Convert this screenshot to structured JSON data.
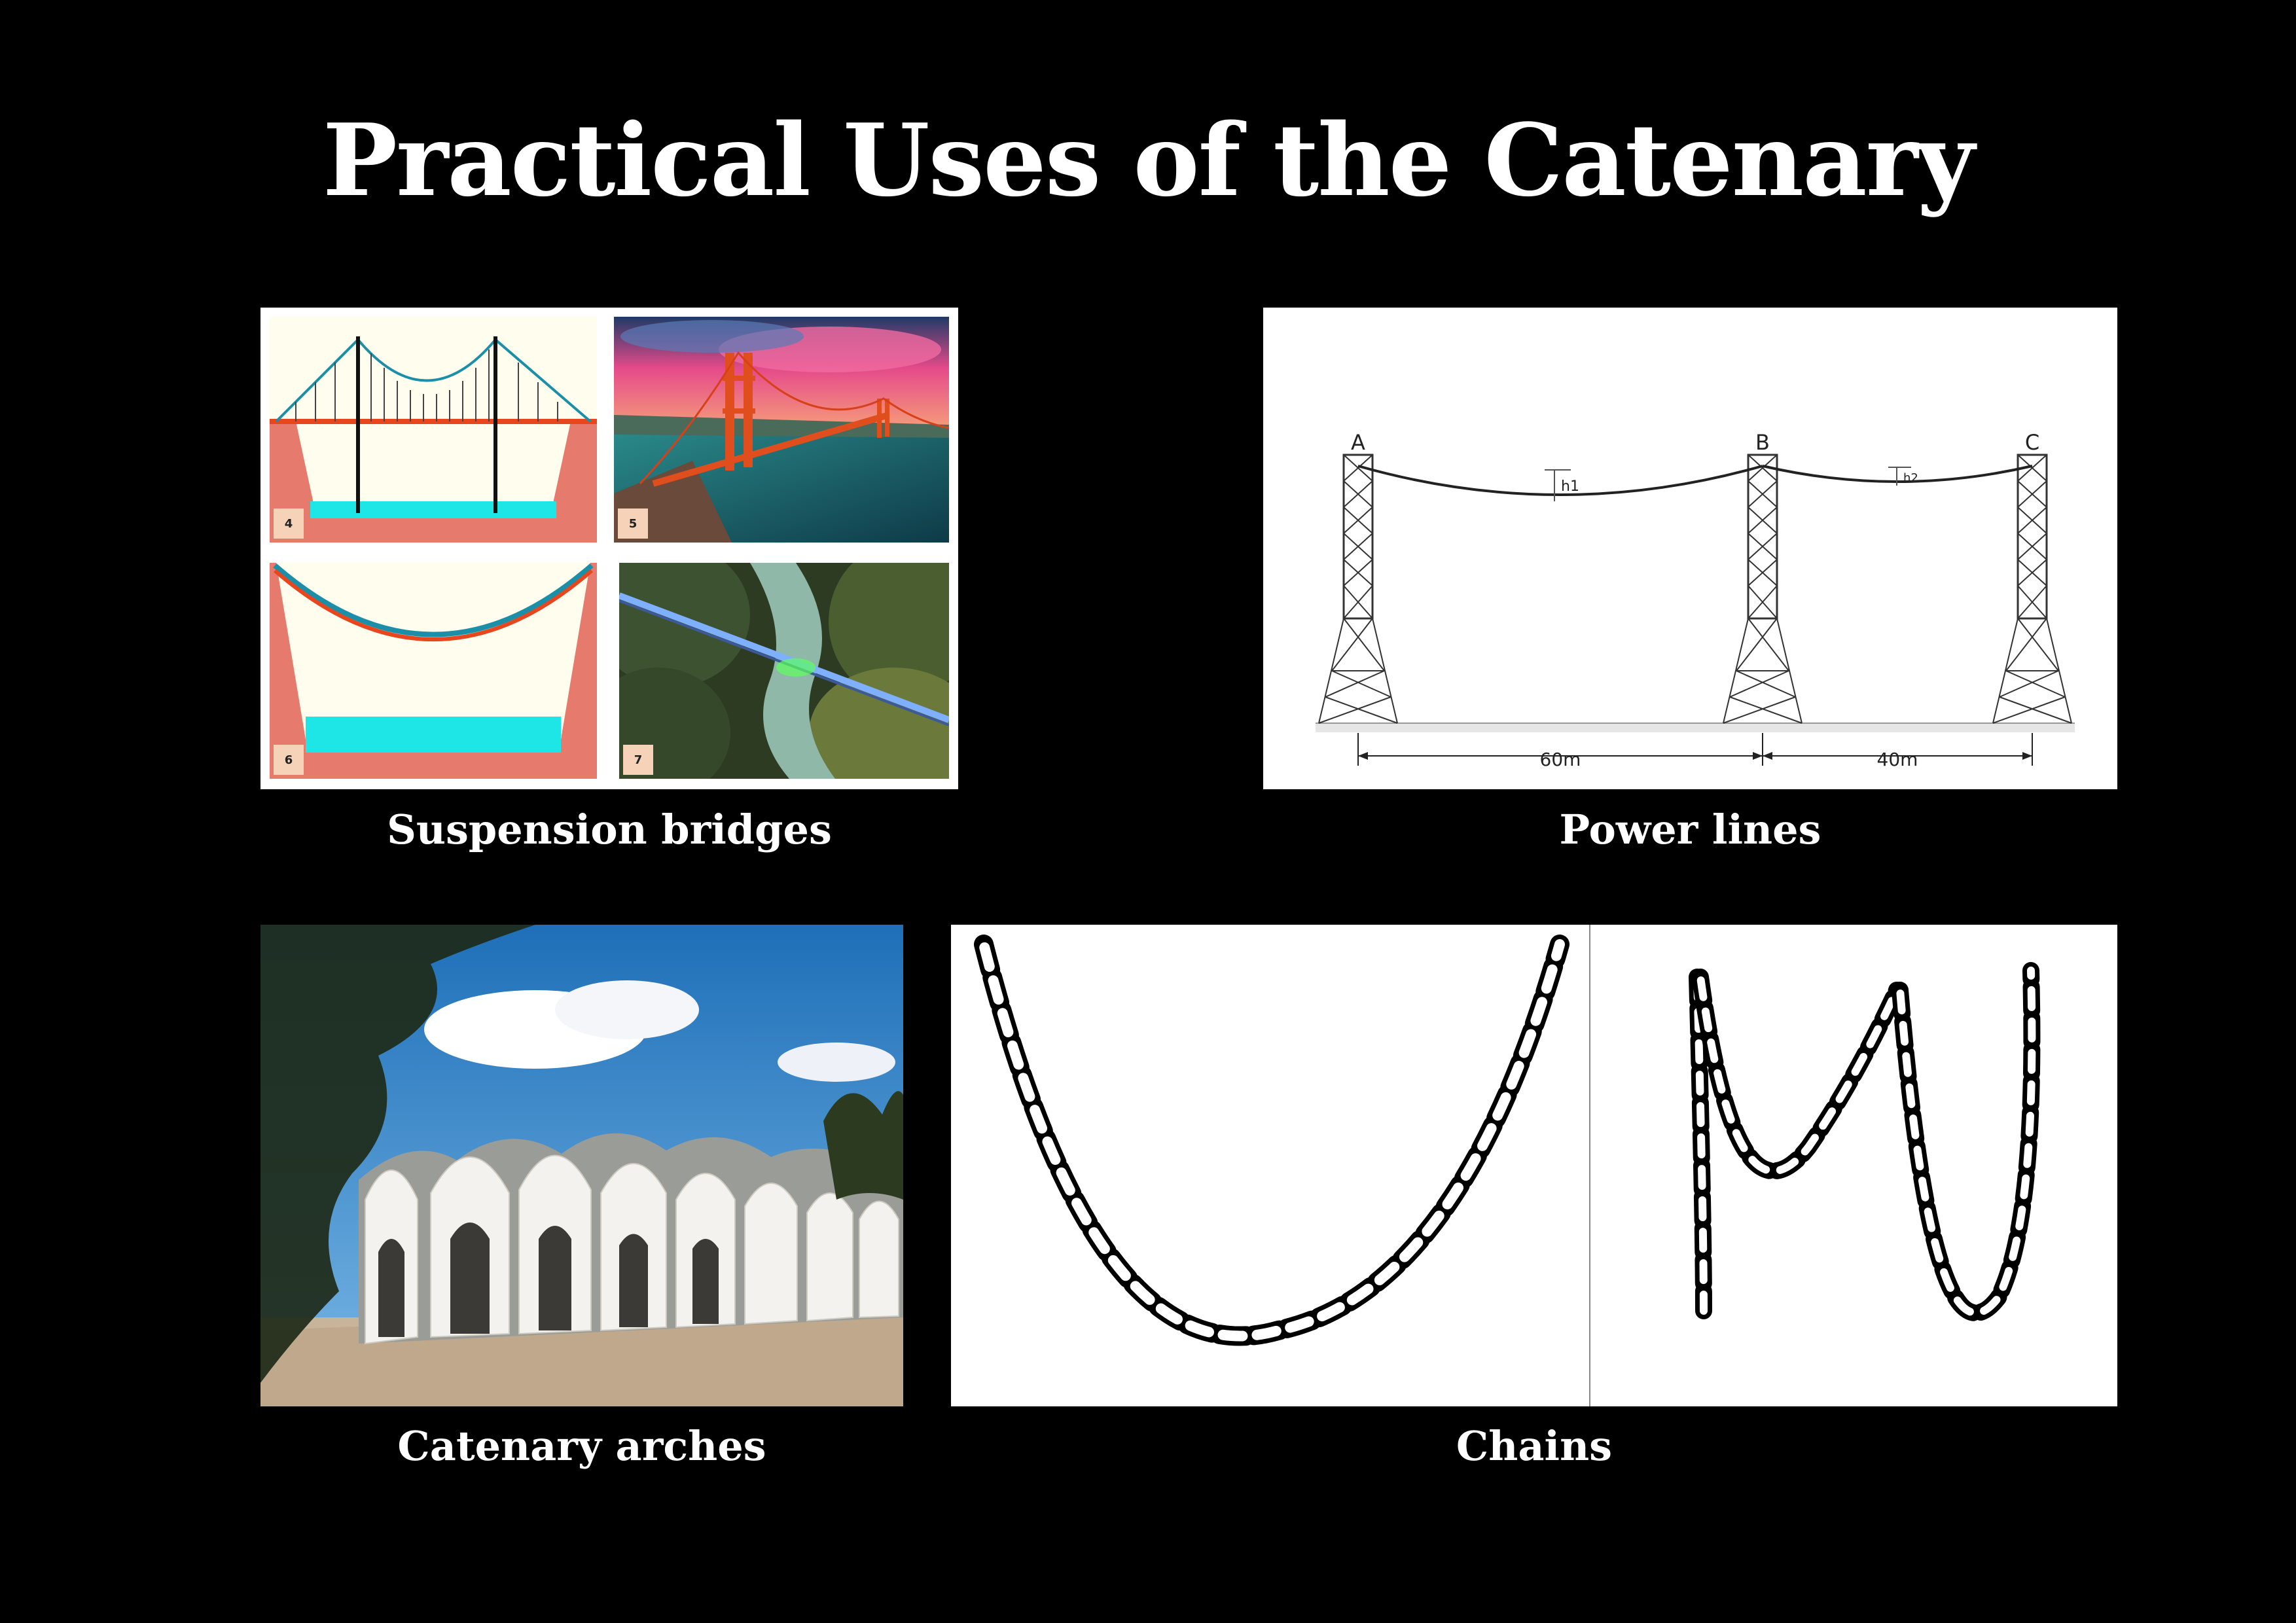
{
  "slide": {
    "title": "Practical Uses of the Catenary"
  },
  "panels": {
    "bridges": {
      "caption": "Suspension bridges",
      "tags": [
        "4",
        "5",
        "6",
        "7"
      ]
    },
    "power_lines": {
      "caption": "Power lines",
      "tower_labels": [
        "A",
        "B",
        "C"
      ],
      "sag_labels": [
        "h1",
        "h2"
      ],
      "span_labels": [
        "60m",
        "40m"
      ]
    },
    "arches": {
      "caption": "Catenary arches"
    },
    "chains": {
      "caption": "Chains"
    }
  },
  "colors": {
    "background": "#000000",
    "text": "#ffffff",
    "bridge_cream": "#fffdee",
    "bridge_salmon": "#e67a6c",
    "bridge_cable": "#e8461d",
    "bridge_water": "#1fe6e6"
  }
}
